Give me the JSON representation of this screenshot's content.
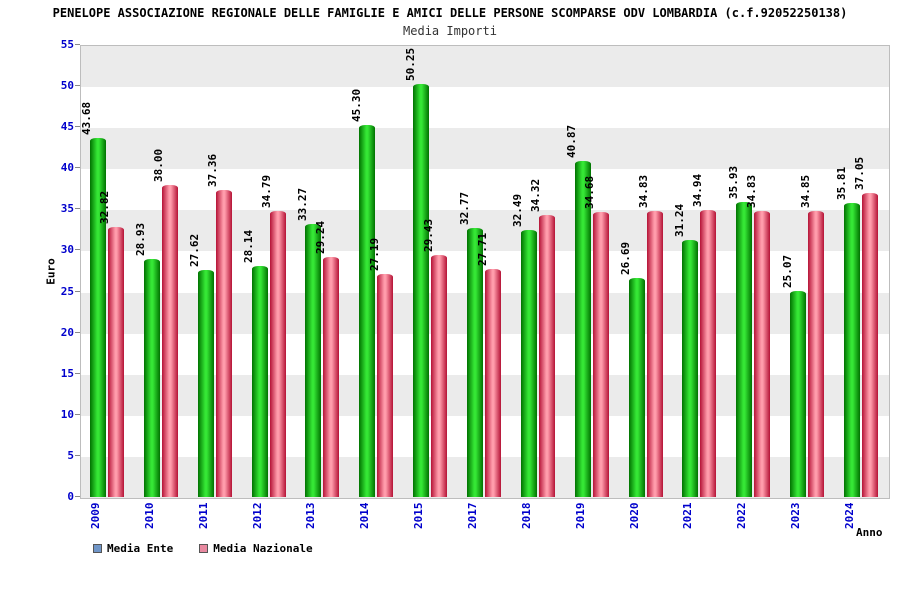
{
  "header": {
    "title_line1": "PENELOPE ASSOCIAZIONE REGIONALE DELLE FAMIGLIE E AMICI DELLE PERSONE SCOMPARSE ODV LOMBARDIA (c.f.92052250138)",
    "title_line2": "Media Importi"
  },
  "axes": {
    "y_label": "Euro",
    "x_label": "Anno",
    "tick_color": "#0000cc",
    "y_min": 0,
    "y_max": 55,
    "y_step": 5
  },
  "legend": {
    "items": [
      {
        "label": "Media Ente",
        "swatch": "#7096c8"
      },
      {
        "label": "Media Nazionale",
        "swatch": "#e889a0"
      }
    ]
  },
  "chart_data": {
    "type": "bar",
    "title": "Media Importi",
    "suptitle": "PENELOPE ASSOCIAZIONE REGIONALE DELLE FAMIGLIE E AMICI DELLE PERSONE SCOMPARSE ODV LOMBARDIA (c.f.92052250138)",
    "categories": [
      "2009",
      "2010",
      "2011",
      "2012",
      "2013",
      "2014",
      "2015",
      "2017",
      "2018",
      "2019",
      "2020",
      "2021",
      "2022",
      "2023",
      "2024"
    ],
    "series": [
      {
        "name": "Media Ente",
        "bar_color_edge": "#007200",
        "bar_color_mid": "#35e635",
        "values": [
          43.68,
          28.93,
          27.62,
          28.14,
          33.27,
          45.3,
          50.25,
          32.77,
          32.49,
          40.87,
          26.69,
          31.24,
          35.93,
          25.07,
          35.81
        ]
      },
      {
        "name": "Media Nazionale",
        "bar_color_edge": "#b51236",
        "bar_color_mid": "#ff9cab",
        "values": [
          32.82,
          38.0,
          37.36,
          34.79,
          29.24,
          27.19,
          29.43,
          27.71,
          34.32,
          34.68,
          34.83,
          34.94,
          34.83,
          34.85,
          37.05
        ]
      }
    ],
    "xlabel": "Anno",
    "ylabel": "Euro",
    "ylim": [
      0,
      55
    ],
    "ytick_step": 5,
    "value_label_format": "2dp",
    "value_label_rotation": -90,
    "x_label_rotation": -90,
    "background_bands": [
      "#ebebeb",
      "#ffffff"
    ],
    "legend_position": "bottom-left",
    "grid": false
  }
}
